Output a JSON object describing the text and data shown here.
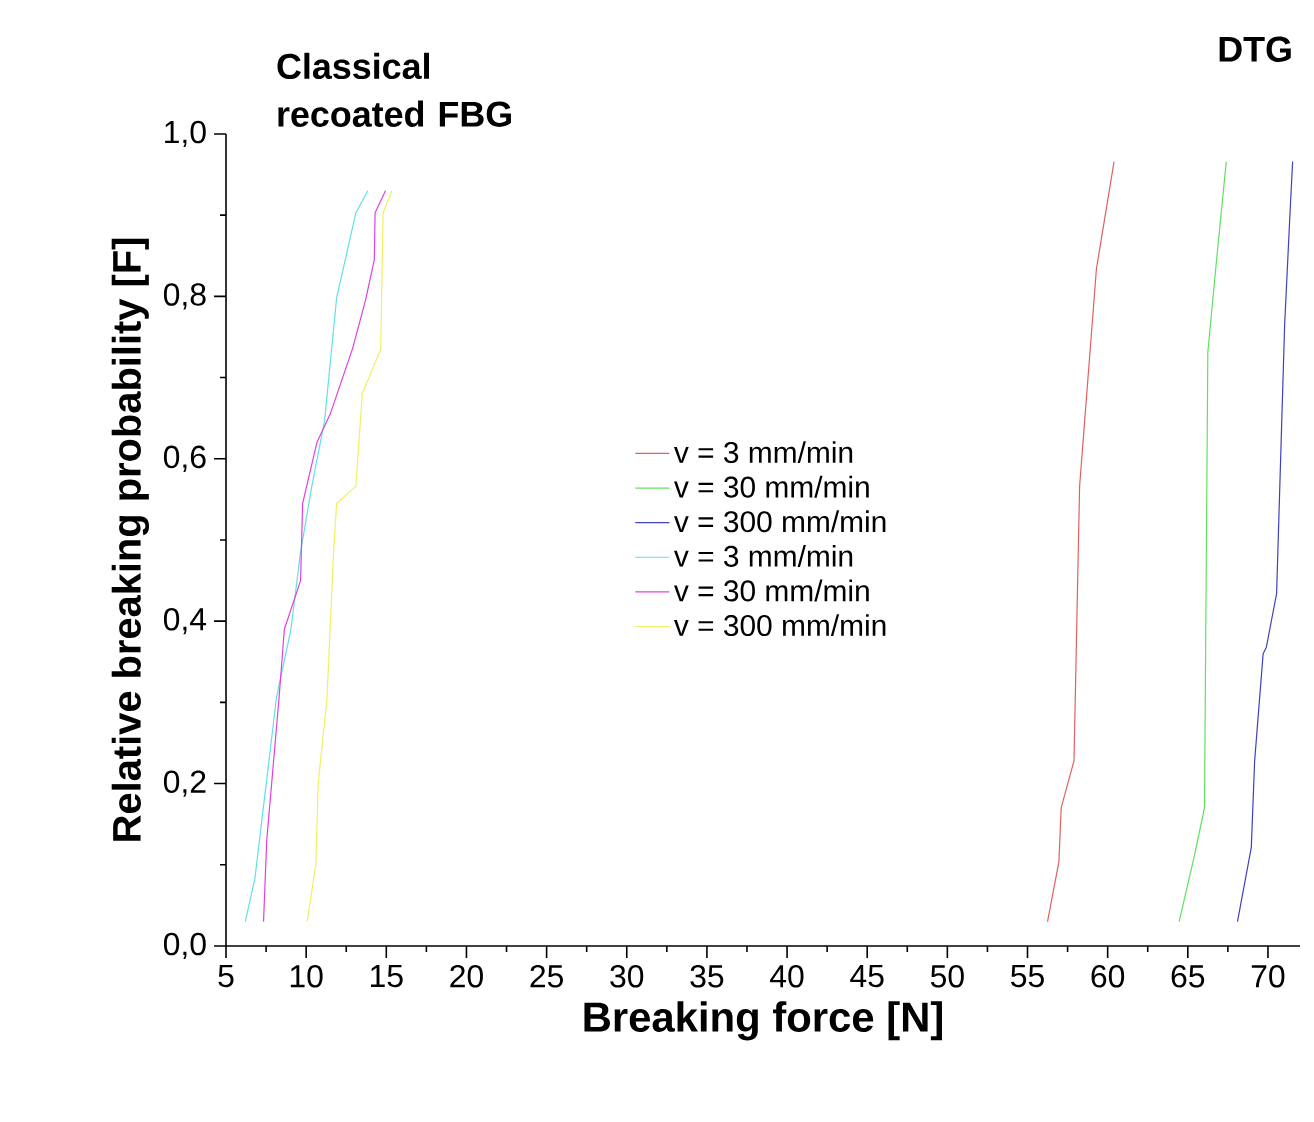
{
  "chart_data": {
    "type": "line",
    "xlabel": "Breaking force [N]",
    "ylabel": "Relative breaking probability  [F]",
    "annotations": [
      "Classical recoated FBG",
      "DTG"
    ],
    "xlim": [
      5,
      72
    ],
    "ylim": [
      0,
      1.0
    ],
    "xticks": [
      5,
      10,
      15,
      20,
      25,
      30,
      35,
      40,
      45,
      50,
      55,
      60,
      65,
      70
    ],
    "yticks": [
      {
        "value": 0,
        "label": "0,0"
      },
      {
        "value": 0.2,
        "label": "0,2"
      },
      {
        "value": 0.4,
        "label": "0,4"
      },
      {
        "value": 0.6,
        "label": "0,6"
      },
      {
        "value": 0.8,
        "label": "0,8"
      },
      {
        "value": 1.0,
        "label": "1,0"
      }
    ],
    "legend": "center",
    "series": [
      {
        "name": "v = 3 mm/min",
        "color": "#e06060",
        "x": [
          56.25,
          56.96,
          57.1,
          57.9,
          58.25,
          59.3,
          60.4
        ],
        "values": [
          0.03,
          0.104,
          0.17,
          0.228,
          0.566,
          0.834,
          0.966
        ]
      },
      {
        "name": "v = 30 mm/min",
        "color": "#60e060",
        "x": [
          64.46,
          65.42,
          66.04,
          66.25,
          66.8,
          67.4
        ],
        "values": [
          0.03,
          0.112,
          0.17,
          0.731,
          0.846,
          0.966
        ]
      },
      {
        "name": "v = 300 mm/min",
        "color": "#4040c0",
        "x": [
          68.1,
          68.96,
          69.17,
          69.7,
          69.9,
          70.54,
          71.04,
          71.38,
          71.54
        ],
        "values": [
          0.03,
          0.121,
          0.228,
          0.36,
          0.368,
          0.434,
          0.764,
          0.904,
          0.966
        ]
      },
      {
        "name": "v = 3 mm/min",
        "color": "#60e0e8",
        "x": [
          6.2,
          6.8,
          8.15,
          9.05,
          9.65,
          10.35,
          11.15,
          11.9,
          13.1,
          13.85
        ],
        "values": [
          0.03,
          0.083,
          0.306,
          0.39,
          0.485,
          0.566,
          0.647,
          0.798,
          0.903,
          0.93
        ]
      },
      {
        "name": "v = 30 mm/min",
        "color": "#e040e0",
        "x": [
          7.34,
          7.54,
          8.31,
          8.64,
          9.65,
          9.78,
          10.67,
          11.5,
          12.9,
          13.7,
          14.25,
          14.3,
          14.95
        ],
        "values": [
          0.03,
          0.13,
          0.306,
          0.39,
          0.45,
          0.545,
          0.62,
          0.655,
          0.736,
          0.795,
          0.845,
          0.903,
          0.93
        ]
      },
      {
        "name": "v = 300 mm/min",
        "color": "#f0f060",
        "x": [
          10.06,
          10.6,
          10.75,
          11.3,
          11.7,
          11.9,
          13.1,
          13.5,
          14.65,
          14.8,
          15.35
        ],
        "values": [
          0.03,
          0.1,
          0.2,
          0.306,
          0.482,
          0.545,
          0.566,
          0.68,
          0.735,
          0.903,
          0.93
        ]
      }
    ]
  }
}
